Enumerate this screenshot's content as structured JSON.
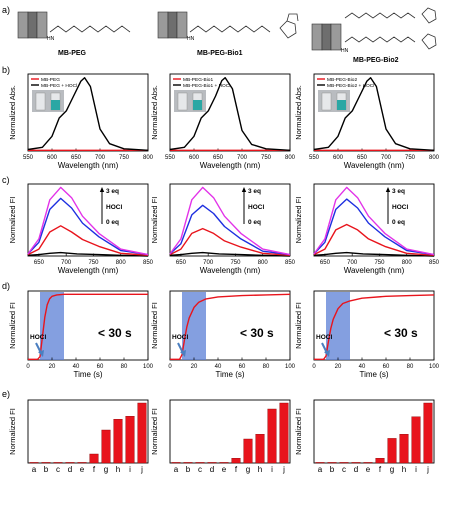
{
  "panel_letters": [
    "a)",
    "b)",
    "c)",
    "d)",
    "e)"
  ],
  "structures": [
    {
      "label": "MB-PEG",
      "nh": "HN"
    },
    {
      "label": "MB-PEG-Bio1",
      "nh": "HN"
    },
    {
      "label": "MB-PEG-Bio2",
      "nh": "HN"
    }
  ],
  "colors": {
    "red": "#e8141c",
    "black": "#000000",
    "blue": "#1d2fe0",
    "magenta": "#e233e8",
    "shade": "#5b7fd6",
    "arrow": "#4b7fc0",
    "cuvette_bg": "#b9bcc0",
    "cuvette_blue": "#2aa7a4"
  },
  "chart_data": [
    {
      "type": "line",
      "row": "b",
      "ylabel": "Normalized Abs.",
      "xlabel": "Wavelength (nm)",
      "xlim": [
        550,
        800
      ],
      "xticks": [
        550,
        600,
        650,
        700,
        750,
        800
      ],
      "legend": [
        "MB-PEG",
        "MB-PEG + HOCl"
      ],
      "series": [
        {
          "name": "MB-PEG",
          "color": "red",
          "x": [
            550,
            600,
            650,
            700,
            750,
            800
          ],
          "y": [
            0.01,
            0.01,
            0.01,
            0.01,
            0.01,
            0.01
          ]
        },
        {
          "name": "MB-PEG + HOCl",
          "color": "black",
          "x": [
            550,
            580,
            600,
            615,
            630,
            645,
            660,
            668,
            680,
            700,
            720,
            750,
            800
          ],
          "y": [
            0.02,
            0.05,
            0.2,
            0.45,
            0.55,
            0.75,
            0.95,
            1.0,
            0.88,
            0.3,
            0.1,
            0.03,
            0.01
          ]
        }
      ]
    },
    {
      "type": "line",
      "row": "b",
      "ylabel": "Normalized Abs.",
      "xlabel": "Wavelength (nm)",
      "xlim": [
        550,
        800
      ],
      "xticks": [
        550,
        600,
        650,
        700,
        750,
        800
      ],
      "legend": [
        "MB-PEG-Bio1",
        "MB-PEG-Bio1 + HOCl"
      ],
      "series": [
        {
          "name": "MB-PEG-Bio1",
          "color": "red",
          "x": [
            550,
            600,
            650,
            700,
            750,
            800
          ],
          "y": [
            0.01,
            0.01,
            0.01,
            0.01,
            0.01,
            0.01
          ]
        },
        {
          "name": "MB-PEG-Bio1 + HOCl",
          "color": "black",
          "x": [
            550,
            580,
            600,
            615,
            630,
            645,
            658,
            665,
            680,
            700,
            720,
            750,
            800
          ],
          "y": [
            0.02,
            0.05,
            0.2,
            0.45,
            0.55,
            0.75,
            0.96,
            1.0,
            0.85,
            0.28,
            0.09,
            0.03,
            0.01
          ]
        }
      ]
    },
    {
      "type": "line",
      "row": "b",
      "ylabel": "Normalized Abs.",
      "xlabel": "Wavelength (nm)",
      "xlim": [
        550,
        800
      ],
      "xticks": [
        550,
        600,
        650,
        700,
        750,
        800
      ],
      "legend": [
        "MB-PEG-Bio2",
        "MB-PEG-Bio2 + HOCl"
      ],
      "series": [
        {
          "name": "MB-PEG-Bio2",
          "color": "red",
          "x": [
            550,
            600,
            650,
            700,
            750,
            800
          ],
          "y": [
            0.01,
            0.01,
            0.01,
            0.01,
            0.01,
            0.01
          ]
        },
        {
          "name": "MB-PEG-Bio2 + HOCl",
          "color": "black",
          "x": [
            550,
            580,
            600,
            615,
            630,
            645,
            660,
            668,
            680,
            700,
            720,
            750,
            800
          ],
          "y": [
            0.02,
            0.05,
            0.2,
            0.45,
            0.55,
            0.75,
            0.95,
            1.0,
            0.88,
            0.3,
            0.1,
            0.03,
            0.01
          ]
        }
      ]
    },
    {
      "type": "line",
      "row": "c",
      "ylabel": "Normalized FI",
      "xlabel": "Wavelength (nm)",
      "xlim": [
        630,
        850
      ],
      "xticks": [
        650,
        700,
        750,
        800,
        850
      ],
      "annot": {
        "top": "3 eq",
        "mid": "HOCl",
        "bottom": "0 eq"
      },
      "series": [
        {
          "color": "black",
          "x": [
            630,
            650,
            670,
            690,
            720,
            760,
            800,
            850
          ],
          "y": [
            0.01,
            0.02,
            0.04,
            0.05,
            0.03,
            0.02,
            0.01,
            0.0
          ]
        },
        {
          "color": "red",
          "x": [
            630,
            650,
            670,
            690,
            710,
            730,
            760,
            800,
            850
          ],
          "y": [
            0.02,
            0.1,
            0.35,
            0.44,
            0.35,
            0.24,
            0.14,
            0.04,
            0.01
          ]
        },
        {
          "color": "blue",
          "x": [
            630,
            650,
            670,
            690,
            710,
            730,
            760,
            800,
            850
          ],
          "y": [
            0.03,
            0.2,
            0.68,
            0.84,
            0.7,
            0.48,
            0.28,
            0.08,
            0.02
          ]
        },
        {
          "color": "magenta",
          "x": [
            630,
            650,
            670,
            690,
            710,
            730,
            760,
            800,
            850
          ],
          "y": [
            0.03,
            0.25,
            0.82,
            1.0,
            0.85,
            0.58,
            0.33,
            0.1,
            0.02
          ]
        }
      ]
    },
    {
      "type": "line",
      "row": "c",
      "ylabel": "Normalized FI",
      "xlabel": "Wavelength (nm)",
      "xlim": [
        630,
        850
      ],
      "xticks": [
        650,
        700,
        750,
        800,
        850
      ],
      "annot": {
        "top": "3 eq",
        "mid": "HOCl",
        "bottom": "0 eq"
      },
      "series": [
        {
          "color": "black",
          "x": [
            630,
            650,
            670,
            690,
            720,
            760,
            800,
            850
          ],
          "y": [
            0.01,
            0.02,
            0.04,
            0.05,
            0.03,
            0.02,
            0.01,
            0.0
          ]
        },
        {
          "color": "red",
          "x": [
            630,
            650,
            670,
            690,
            710,
            730,
            760,
            800,
            850
          ],
          "y": [
            0.02,
            0.1,
            0.33,
            0.4,
            0.33,
            0.22,
            0.13,
            0.04,
            0.01
          ]
        },
        {
          "color": "blue",
          "x": [
            630,
            650,
            670,
            690,
            710,
            730,
            760,
            800,
            850
          ],
          "y": [
            0.03,
            0.18,
            0.6,
            0.74,
            0.62,
            0.43,
            0.25,
            0.07,
            0.02
          ]
        },
        {
          "color": "magenta",
          "x": [
            630,
            650,
            670,
            690,
            710,
            730,
            760,
            800,
            850
          ],
          "y": [
            0.03,
            0.25,
            0.82,
            1.0,
            0.85,
            0.58,
            0.33,
            0.1,
            0.02
          ]
        }
      ]
    },
    {
      "type": "line",
      "row": "c",
      "ylabel": "Normalized FI",
      "xlabel": "Wavelength (nm)",
      "xlim": [
        630,
        850
      ],
      "xticks": [
        650,
        700,
        750,
        800,
        850
      ],
      "annot": {
        "top": "3 eq",
        "mid": "HOCl",
        "bottom": "0 eq"
      },
      "series": [
        {
          "color": "black",
          "x": [
            630,
            650,
            670,
            690,
            720,
            760,
            800,
            850
          ],
          "y": [
            0.01,
            0.02,
            0.04,
            0.05,
            0.03,
            0.02,
            0.01,
            0.0
          ]
        },
        {
          "color": "red",
          "x": [
            630,
            650,
            670,
            690,
            710,
            730,
            760,
            800,
            850
          ],
          "y": [
            0.02,
            0.1,
            0.38,
            0.46,
            0.38,
            0.25,
            0.14,
            0.04,
            0.01
          ]
        },
        {
          "color": "blue",
          "x": [
            630,
            650,
            670,
            690,
            710,
            730,
            760,
            800,
            850
          ],
          "y": [
            0.03,
            0.2,
            0.68,
            0.83,
            0.7,
            0.48,
            0.28,
            0.08,
            0.02
          ]
        },
        {
          "color": "magenta",
          "x": [
            630,
            650,
            670,
            690,
            710,
            730,
            760,
            800,
            850
          ],
          "y": [
            0.03,
            0.25,
            0.82,
            1.0,
            0.85,
            0.58,
            0.33,
            0.1,
            0.02
          ]
        }
      ]
    },
    {
      "type": "line",
      "row": "d",
      "ylabel": "Normalized FI",
      "xlabel": "Time (s)",
      "xlim": [
        0,
        100
      ],
      "xticks": [
        0,
        20,
        40,
        60,
        80,
        100
      ],
      "shade": [
        10,
        30
      ],
      "annot_time": "< 30 s",
      "annot_hocl": "HOCl",
      "series": [
        {
          "color": "red",
          "x": [
            0,
            8,
            10,
            12,
            14,
            16,
            18,
            20,
            24,
            30,
            40,
            60,
            80,
            100
          ],
          "y": [
            0.01,
            0.01,
            0.05,
            0.35,
            0.65,
            0.84,
            0.93,
            0.97,
            0.99,
            1.0,
            1.0,
            1.0,
            1.0,
            1.0
          ]
        }
      ]
    },
    {
      "type": "line",
      "row": "d",
      "ylabel": "Normalized FI",
      "xlabel": "Time (s)",
      "xlim": [
        0,
        100
      ],
      "xticks": [
        0,
        20,
        40,
        60,
        80,
        100
      ],
      "shade": [
        10,
        30
      ],
      "annot_time": "< 30 s",
      "annot_hocl": "HOCl",
      "series": [
        {
          "color": "red",
          "x": [
            0,
            8,
            10,
            12,
            14,
            16,
            20,
            24,
            30,
            40,
            60,
            80,
            100
          ],
          "y": [
            0.01,
            0.01,
            0.08,
            0.3,
            0.5,
            0.64,
            0.8,
            0.88,
            0.93,
            0.96,
            0.98,
            0.99,
            1.0
          ]
        }
      ]
    },
    {
      "type": "line",
      "row": "d",
      "ylabel": "Normalized FI",
      "xlabel": "Time (s)",
      "xlim": [
        0,
        100
      ],
      "xticks": [
        0,
        20,
        40,
        60,
        80,
        100
      ],
      "shade": [
        10,
        30
      ],
      "annot_time": "< 30 s",
      "annot_hocl": "HOCl",
      "series": [
        {
          "color": "red",
          "x": [
            0,
            8,
            10,
            12,
            14,
            16,
            20,
            24,
            30,
            40,
            60,
            80,
            100
          ],
          "y": [
            0.01,
            0.01,
            0.06,
            0.28,
            0.48,
            0.62,
            0.78,
            0.86,
            0.9,
            0.94,
            0.97,
            0.98,
            0.99
          ]
        }
      ]
    },
    {
      "type": "bar",
      "row": "e",
      "ylabel": "Normalized FI",
      "categories": [
        "a",
        "b",
        "c",
        "d",
        "e",
        "f",
        "g",
        "h",
        "i",
        "j"
      ],
      "values": [
        0.01,
        0.01,
        0.01,
        0.01,
        0.01,
        0.15,
        0.55,
        0.73,
        0.78,
        1.0
      ]
    },
    {
      "type": "bar",
      "row": "e",
      "ylabel": "Normalized FI",
      "categories": [
        "a",
        "b",
        "c",
        "d",
        "e",
        "f",
        "g",
        "h",
        "i",
        "j"
      ],
      "values": [
        0.01,
        0.01,
        0.01,
        0.01,
        0.01,
        0.08,
        0.4,
        0.48,
        0.9,
        1.0
      ]
    },
    {
      "type": "bar",
      "row": "e",
      "ylabel": "Normalized FI",
      "categories": [
        "a",
        "b",
        "c",
        "d",
        "e",
        "f",
        "g",
        "h",
        "i",
        "j"
      ],
      "values": [
        0.01,
        0.01,
        0.01,
        0.01,
        0.01,
        0.08,
        0.41,
        0.48,
        0.77,
        1.0
      ]
    }
  ]
}
